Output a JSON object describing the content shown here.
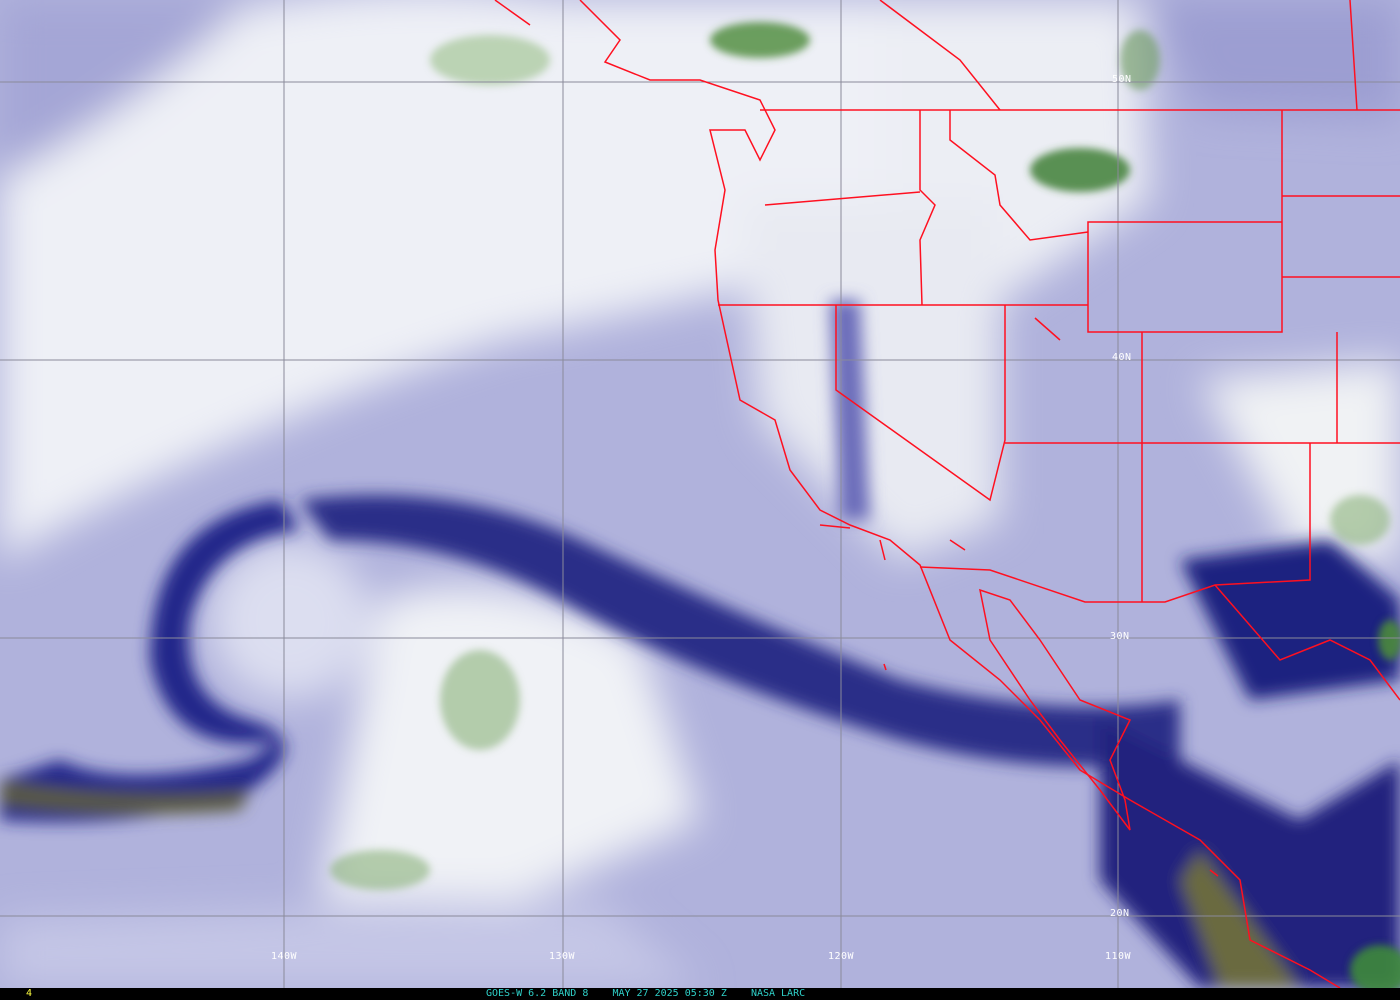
{
  "image": {
    "satellite": "GOES-W",
    "channel": "6.2 BAND 8",
    "date": "MAY 27 2025",
    "time": "05:30 Z",
    "source": "NASA LARC",
    "frame_number": "4"
  },
  "caption_parts": [
    "GOES-W 6.2 BAND 8",
    "MAY 27 2025 05:30 Z",
    "NASA LARC"
  ],
  "grid": {
    "latitude_labels": [
      "50N",
      "40N",
      "30N",
      "20N"
    ],
    "longitude_labels": [
      "140W",
      "130W",
      "120W",
      "110W"
    ]
  },
  "colors": {
    "border_lines": "#ff1020",
    "grid_lines": "#8a8a9a",
    "dry_dark": "#1c1f78",
    "mid": "#a8aad8",
    "moist_white": "#f2f4f8",
    "moist_green": "#4a8a3a",
    "caption_text": "#2fd0c8",
    "frame_text": "#ffff40"
  }
}
